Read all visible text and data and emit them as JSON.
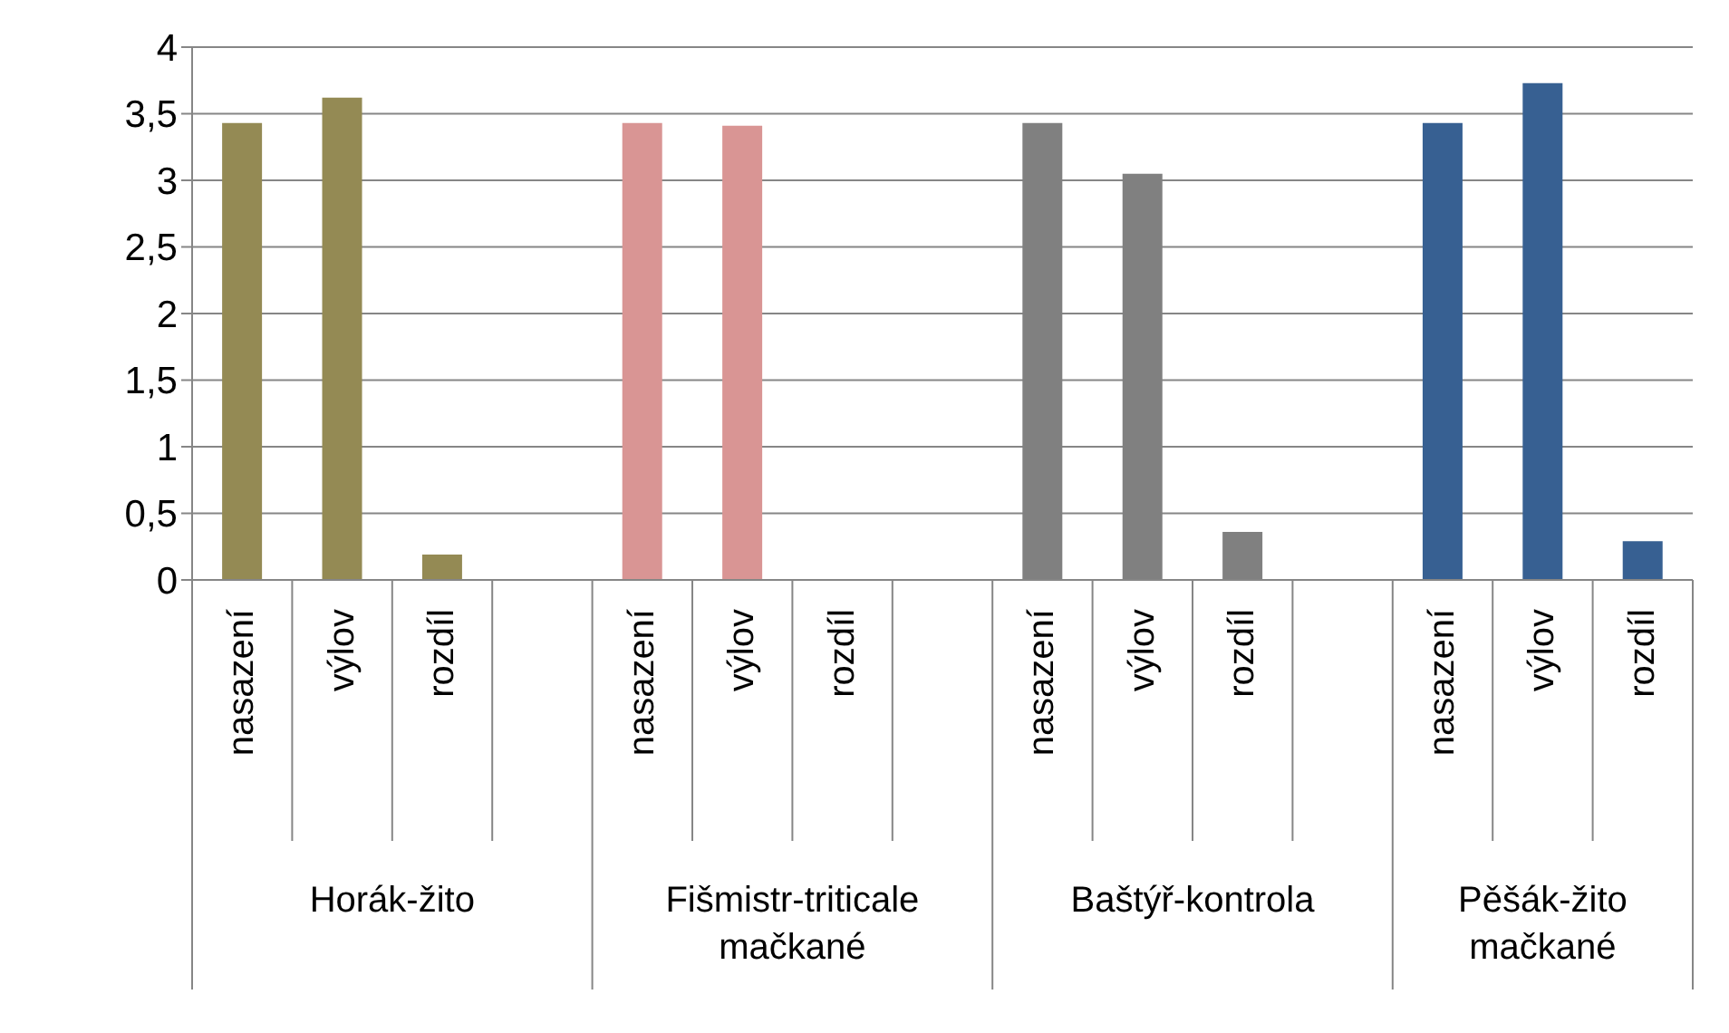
{
  "chart_data": {
    "type": "bar",
    "categories": [
      "nasazení",
      "výlov",
      "rozdíl",
      null,
      "nasazení",
      "výlov",
      "rozdíl",
      null,
      "nasazení",
      "výlov",
      "rozdíl",
      null,
      "nasazení",
      "výlov",
      "rozdíl"
    ],
    "values": [
      3.43,
      3.62,
      0.19,
      null,
      3.43,
      3.41,
      0,
      null,
      3.43,
      3.05,
      0.36,
      null,
      3.43,
      3.73,
      0.29
    ],
    "colors": [
      "#948a54",
      "#948a54",
      "#948a54",
      "#948a54",
      "#d99594",
      "#d99594",
      "#d99594",
      "#d99594",
      "#808080",
      "#808080",
      "#808080",
      "#808080",
      "#376092",
      "#376092",
      "#376092"
    ],
    "annotations": [
      "Horák-žito",
      "Fišmistr-triticale mačkané",
      "Baštýř-kontrola",
      "Pěšák-žito mačkané"
    ],
    "ylim": [
      0,
      4
    ],
    "yticks": [
      0,
      {
        "value": 0.5,
        "label": "0,5"
      },
      1,
      {
        "value": 1.5,
        "label": "1,5"
      },
      2,
      {
        "value": 2.5,
        "label": "2,5"
      },
      3,
      {
        "value": 3.5,
        "label": "3,5"
      },
      4
    ],
    "grid": "y"
  }
}
